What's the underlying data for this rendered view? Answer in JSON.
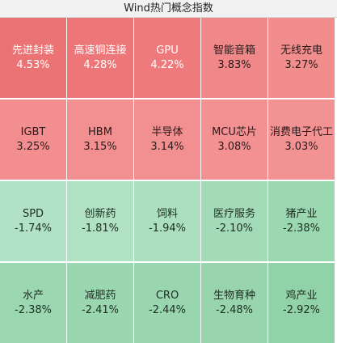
{
  "title": "Wind热门概念指数",
  "tiles": [
    {
      "name": "先进封装",
      "change": "4.53%",
      "color": "#ec7374",
      "tone": "up"
    },
    {
      "name": "高速铜连接",
      "change": "4.28%",
      "color": "#ed7778",
      "tone": "up"
    },
    {
      "name": "GPU",
      "change": "4.22%",
      "color": "#ee7a7b",
      "tone": "up"
    },
    {
      "name": "智能音箱",
      "change": "3.83%",
      "color": "#f08788",
      "tone": "up-light"
    },
    {
      "name": "无线充电",
      "change": "3.27%",
      "color": "#f28d8e",
      "tone": "up-light"
    },
    {
      "name": "IGBT",
      "change": "3.25%",
      "color": "#f28e8f",
      "tone": "up-light"
    },
    {
      "name": "HBM",
      "change": "3.15%",
      "color": "#f28f90",
      "tone": "up-light"
    },
    {
      "name": "半导体",
      "change": "3.14%",
      "color": "#f29091",
      "tone": "up-light"
    },
    {
      "name": "MCU芯片",
      "change": "3.08%",
      "color": "#f39192",
      "tone": "up-light"
    },
    {
      "name": "消费电子代工",
      "change": "3.03%",
      "color": "#f39293",
      "tone": "up-light"
    },
    {
      "name": "SPD",
      "change": "-1.74%",
      "color": "#b2e2c5",
      "tone": "down"
    },
    {
      "name": "创新药",
      "change": "-1.81%",
      "color": "#b0e1c3",
      "tone": "down"
    },
    {
      "name": "饲料",
      "change": "-1.94%",
      "color": "#abdfbf",
      "tone": "down"
    },
    {
      "name": "医疗服务",
      "change": "-2.10%",
      "color": "#a3dbb8",
      "tone": "down"
    },
    {
      "name": "猪产业",
      "change": "-2.38%",
      "color": "#9bd7b1",
      "tone": "down"
    },
    {
      "name": "水产",
      "change": "-2.38%",
      "color": "#9bd7b1",
      "tone": "down"
    },
    {
      "name": "减肥药",
      "change": "-2.41%",
      "color": "#9ad6b0",
      "tone": "down"
    },
    {
      "name": "CRO",
      "change": "-2.44%",
      "color": "#99d6af",
      "tone": "down"
    },
    {
      "name": "生物育种",
      "change": "-2.48%",
      "color": "#98d5ae",
      "tone": "down"
    },
    {
      "name": "鸡产业",
      "change": "-2.92%",
      "color": "#92d2a9",
      "tone": "down"
    }
  ]
}
